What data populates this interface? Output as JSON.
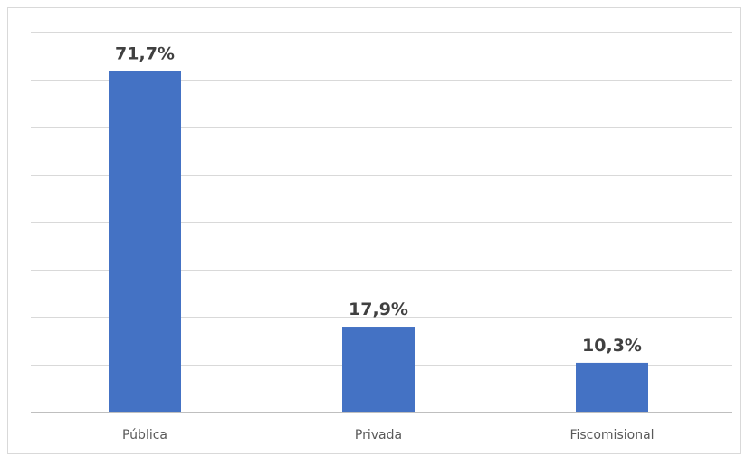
{
  "chart_data": {
    "type": "bar",
    "categories": [
      "Pública",
      "Privada",
      "Fiscomisional"
    ],
    "values": [
      71.7,
      17.9,
      10.3
    ],
    "data_labels": [
      "71,7%",
      "17,9%",
      "10,3%"
    ],
    "ylim": [
      0,
      80
    ],
    "grid": true,
    "legend": "none",
    "title": "",
    "xlabel": "",
    "ylabel": ""
  },
  "colors": {
    "bar": "#4472c4",
    "grid": "#d9d9d9",
    "axis": "#bfbfbf"
  }
}
